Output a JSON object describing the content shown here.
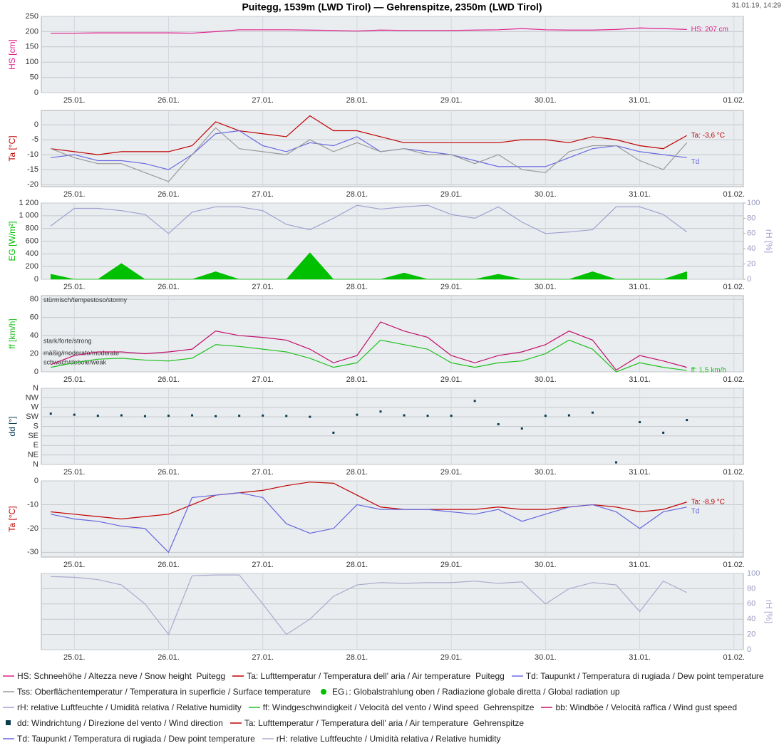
{
  "chart_data": {
    "type": "multi-panel",
    "title": "Puitegg, 1539m (LWD Tirol) — Gehrenspitze, 2350m (LWD Tirol)",
    "timestamp": "31.01.19, 14:29",
    "x": [
      -0.25,
      0,
      0.25,
      0.5,
      0.75,
      1,
      1.25,
      1.5,
      1.75,
      2,
      2.25,
      2.5,
      2.75,
      3,
      3.25,
      3.5,
      3.75,
      4,
      4.25,
      4.5,
      4.75,
      5,
      5.25,
      5.5,
      5.75,
      6,
      6.25,
      6.5
    ],
    "xlim": [
      -0.35,
      7.1
    ],
    "xticks": [
      {
        "value": 0,
        "label": "25.01."
      },
      {
        "value": 1,
        "label": "26.01."
      },
      {
        "value": 2,
        "label": "27.01."
      },
      {
        "value": 3,
        "label": "28.01."
      },
      {
        "value": 4,
        "label": "29.01."
      },
      {
        "value": 5,
        "label": "30.01."
      },
      {
        "value": 6,
        "label": "31.01."
      },
      {
        "value": 7,
        "label": "01.02."
      }
    ],
    "grid": true,
    "panels": [
      {
        "type": "line",
        "ylabel": "HS [cm]",
        "ylim": [
          0,
          250
        ],
        "yticks": [
          0,
          50,
          100,
          150,
          200,
          250
        ],
        "series": [
          {
            "name": "HS: Schneehöhe / Altezza neve / Snow height  Puitegg",
            "color": "#e0208c",
            "end_label": "HS: 207 cm",
            "values": [
              195,
              195,
              196,
              196,
              196,
              196,
              195,
              200,
              206,
              206,
              206,
              205,
              204,
              202,
              205,
              204,
              204,
              204,
              205,
              206,
              210,
              206,
              205,
              205,
              207,
              212,
              210,
              207
            ]
          }
        ]
      },
      {
        "type": "line",
        "ylabel": "Ta [°C]",
        "ylim": [
          -20.7,
          4.8
        ],
        "yticks": [
          -20,
          -15,
          -10,
          -5,
          0
        ],
        "series": [
          {
            "name": "Ta: Lufttemperatur / Temperatura dell' aria / Air temperature  Puitegg",
            "color": "#c00000",
            "end_label": "Ta: -3,6 °C",
            "values": [
              -8,
              -9,
              -10,
              -9,
              -9,
              -9,
              -7,
              1,
              -2,
              -3,
              -4,
              3,
              -2,
              -2,
              -4,
              -6,
              -6,
              -6,
              -6,
              -6,
              -5,
              -5,
              -6,
              -4,
              -5,
              -7,
              -8,
              -3.6
            ]
          },
          {
            "name": "Td: Taupunkt / Temperatura di rugiada / Dew point temperature",
            "color": "#6a6ae0",
            "end_label": "Td",
            "values": [
              -11,
              -10,
              -12,
              -12,
              -13,
              -15,
              -10,
              -3,
              -2,
              -7,
              -9,
              -6,
              -7,
              -4,
              -9,
              -8,
              -9,
              -10,
              -12,
              -14,
              -14,
              -14,
              -11,
              -8,
              -7,
              -9,
              -10,
              -11
            ]
          },
          {
            "name": "Tss: Oberflächentemperatur / Temperatura in superficie / Surface temperature",
            "color": "#9a9a9a",
            "values": [
              -8,
              -11,
              -13,
              -13,
              -16,
              -19,
              -10,
              -1,
              -8,
              -9,
              -10,
              -5,
              -9,
              -6,
              -9,
              -8,
              -10,
              -10,
              -13,
              -10,
              -15,
              -16,
              -9,
              -7,
              -7,
              -12,
              -15,
              -6
            ]
          }
        ]
      },
      {
        "type": "line",
        "ylabel": "EG [W/m²]",
        "ylim": [
          0,
          1200
        ],
        "yticks": [
          0,
          200,
          400,
          600,
          800,
          {
            "value": 1000,
            "label": "1 000"
          },
          {
            "value": 1200,
            "label": "1 200"
          }
        ],
        "y2label": "rH [%]",
        "y2lim": [
          0,
          100
        ],
        "y2ticks": [
          0,
          20,
          40,
          60,
          80,
          100
        ],
        "series": [
          {
            "name": "EG↓: Globalstrahlung oben / Radiazione globale diretta / Global radiation up",
            "color": "#00c000",
            "type": "area",
            "values": [
              80,
              0,
              0,
              250,
              0,
              0,
              0,
              120,
              0,
              0,
              0,
              420,
              0,
              0,
              0,
              100,
              0,
              0,
              0,
              80,
              0,
              0,
              0,
              120,
              0,
              0,
              0,
              120
            ]
          },
          {
            "name": "rH: relative Luftfeuchte / Umidità relativa / Relative humidity",
            "color": "#a0a0d0",
            "axis": "y2",
            "values": [
              70,
              93,
              93,
              90,
              85,
              60,
              88,
              95,
              95,
              90,
              72,
              65,
              80,
              97,
              92,
              95,
              97,
              85,
              80,
              95,
              75,
              60,
              62,
              65,
              95,
              95,
              85,
              62
            ]
          }
        ]
      },
      {
        "type": "line",
        "ylabel": "ff [km/h]",
        "ylim": [
          0,
          84
        ],
        "yticks": [
          0,
          20,
          40,
          60,
          80
        ],
        "annotations": [
          "stürmisch/tempestoso/stormy",
          "stark/forte/strong",
          "mäßig/moderato/moderate",
          "schwach/debole/weak"
        ],
        "series": [
          {
            "name": "ff: Windgeschwindigkeit / Velocità del vento / Wind speed  Gehrenspitze",
            "color": "#20c020",
            "end_label": "ff: 1,5 km/h",
            "values": [
              5,
              10,
              14,
              15,
              13,
              12,
              15,
              30,
              28,
              25,
              22,
              15,
              5,
              10,
              35,
              30,
              25,
              10,
              5,
              10,
              12,
              20,
              35,
              25,
              0,
              10,
              5,
              1.5
            ]
          },
          {
            "name": "bb: Windböe / Velocità raffica / Wind gust speed",
            "color": "#c0106a",
            "values": [
              8,
              18,
              22,
              22,
              20,
              22,
              25,
              45,
              40,
              38,
              35,
              25,
              10,
              18,
              55,
              45,
              38,
              18,
              10,
              18,
              22,
              30,
              45,
              35,
              2,
              18,
              12,
              5
            ]
          }
        ]
      },
      {
        "type": "scatter",
        "ylabel": "dd [°]",
        "ylim": [
          0,
          360
        ],
        "yticks": [
          {
            "value": 0,
            "label": "N"
          },
          {
            "value": 45,
            "label": "NE"
          },
          {
            "value": 90,
            "label": "E"
          },
          {
            "value": 135,
            "label": "SE"
          },
          {
            "value": 180,
            "label": "S"
          },
          {
            "value": 225,
            "label": "SW"
          },
          {
            "value": 270,
            "label": "W"
          },
          {
            "value": 315,
            "label": "NW"
          },
          {
            "value": 360,
            "label": "N"
          }
        ],
        "series": [
          {
            "name": "dd: Windrichtung / Direzione del vento / Wind direction",
            "color": "#0a3c50",
            "type": "scatter",
            "values": [
              240,
              235,
              230,
              232,
              228,
              230,
              232,
              228,
              230,
              231,
              229,
              225,
              150,
              235,
              250,
              232,
              230,
              230,
              300,
              190,
              170,
              230,
              232,
              245,
              10,
              200,
              150,
              210
            ]
          }
        ]
      },
      {
        "type": "line",
        "ylabel": "Ta [°C]",
        "ylim": [
          -32,
          0
        ],
        "yticks": [
          -30,
          -20,
          -10,
          0
        ],
        "series": [
          {
            "name": "Ta: Lufttemperatur / Temperatura dell' aria / Air temperature  Gehrenspitze",
            "color": "#c00000",
            "end_label": "Ta: -8,9 °C",
            "values": [
              -13,
              -14,
              -15,
              -16,
              -15,
              -14,
              -10,
              -6,
              -5,
              -4,
              -2,
              -0.5,
              -1,
              -6,
              -11,
              -12,
              -12,
              -12,
              -12,
              -11,
              -12,
              -12,
              -11,
              -10,
              -11,
              -13,
              -12,
              -8.9
            ]
          },
          {
            "name": "Td: Taupunkt / Temperatura di rugiada / Dew point temperature",
            "color": "#6666dd",
            "end_label": "Td",
            "values": [
              -14,
              -16,
              -17,
              -19,
              -20,
              -30,
              -7,
              -6,
              -5,
              -7,
              -18,
              -22,
              -20,
              -10,
              -12,
              -12,
              -12,
              -13,
              -14,
              -12,
              -17,
              -14,
              -11,
              -10,
              -13,
              -20,
              -13,
              -11
            ]
          }
        ]
      },
      {
        "type": "line",
        "y2label": "rH [%]",
        "y2lim": [
          0,
          100
        ],
        "y2ticks": [
          0,
          20,
          40,
          60,
          80,
          100
        ],
        "series": [
          {
            "name": "rH: relative Luftfeuchte / Umidità relativa / Relative humidity",
            "color": "#aaaacc",
            "axis": "y2",
            "values": [
              96,
              95,
              92,
              85,
              60,
              20,
              97,
              98,
              98,
              60,
              20,
              40,
              70,
              85,
              88,
              87,
              88,
              88,
              90,
              87,
              89,
              60,
              80,
              88,
              85,
              50,
              90,
              75
            ]
          }
        ]
      }
    ]
  }
}
